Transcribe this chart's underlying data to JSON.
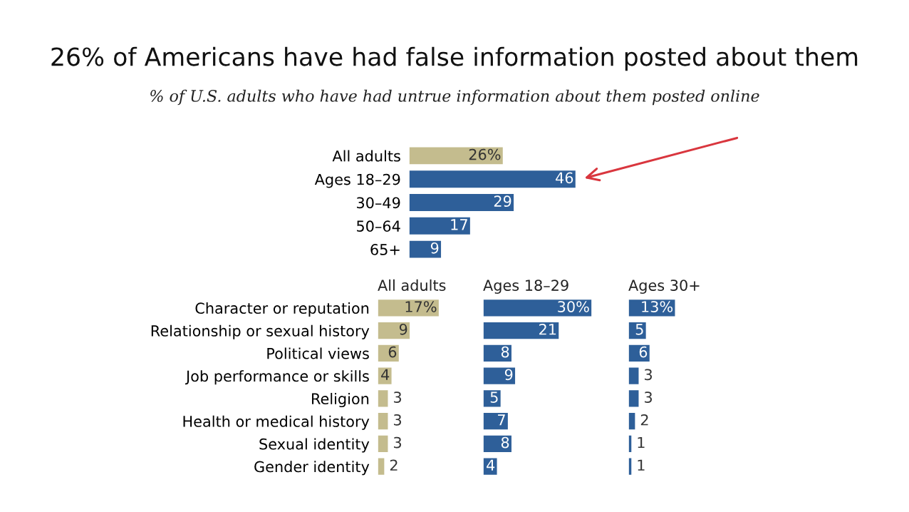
{
  "chart_data": [
    {
      "type": "bar",
      "orientation": "horizontal",
      "title": "26% of Americans have had false information posted about them",
      "subtitle": "% of U.S. adults who have had untrue information about them posted online",
      "categories": [
        "All adults",
        "Ages 18–29",
        "30–49",
        "50–64",
        "65+"
      ],
      "values": [
        26,
        46,
        29,
        17,
        9
      ],
      "colors": [
        "#c4bc8e",
        "#2e5f99",
        "#2e5f99",
        "#2e5f99",
        "#2e5f99"
      ],
      "value_labels": [
        "26%",
        "46",
        "29",
        "17",
        "9"
      ]
    },
    {
      "type": "bar",
      "orientation": "horizontal",
      "title": "All adults",
      "categories": [
        "Character or reputation",
        "Relationship or sexual history",
        "Political views",
        "Job performance or skills",
        "Religion",
        "Health or medical history",
        "Sexual identity",
        "Gender identity"
      ],
      "values": [
        17,
        9,
        6,
        4,
        3,
        3,
        3,
        2
      ],
      "color": "#c4bc8e",
      "value_labels": [
        "17%",
        "9",
        "6",
        "4",
        "3",
        "3",
        "3",
        "2"
      ]
    },
    {
      "type": "bar",
      "orientation": "horizontal",
      "title": "Ages 18–29",
      "categories": [
        null,
        null,
        null,
        null,
        null,
        null,
        null,
        null
      ],
      "values": [
        30,
        21,
        8,
        9,
        5,
        7,
        8,
        4
      ],
      "color": "#2e5f99",
      "value_labels": [
        "30%",
        "21",
        "8",
        "9",
        "5",
        "7",
        "8",
        "4"
      ]
    },
    {
      "type": "bar",
      "orientation": "horizontal",
      "title": "Ages 30+",
      "categories": [
        null,
        null,
        null,
        null,
        null,
        null,
        null,
        null
      ],
      "values": [
        13,
        5,
        6,
        3,
        3,
        2,
        1,
        1
      ],
      "color": "#2e5f99",
      "value_labels": [
        "13%",
        "5",
        "6",
        "3",
        "3",
        "2",
        "1",
        "1"
      ]
    }
  ]
}
